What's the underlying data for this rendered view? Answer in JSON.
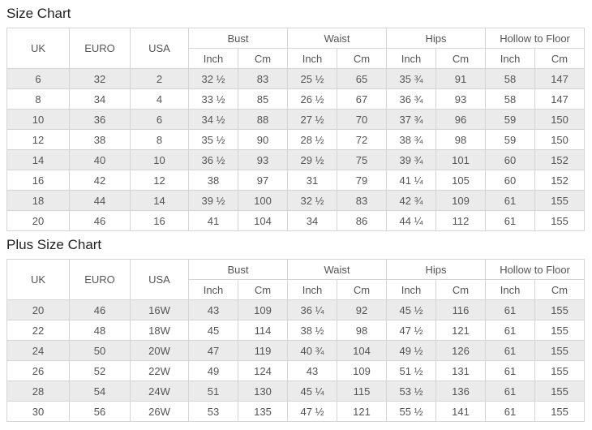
{
  "colors": {
    "background": "#ffffff",
    "border": "#d4d4d4",
    "stripe_row": "#ebebeb",
    "text": "#555555",
    "title_text": "#222222"
  },
  "charts": [
    {
      "title": "Size Chart",
      "columns": {
        "simple": [
          "UK",
          "EURO",
          "USA"
        ],
        "groups": [
          "Bust",
          "Waist",
          "Hips",
          "Hollow to Floor"
        ],
        "units": [
          "Inch",
          "Cm"
        ]
      },
      "rows": [
        [
          "6",
          "32",
          "2",
          "32 ½",
          "83",
          "25 ½",
          "65",
          "35 ¾",
          "91",
          "58",
          "147"
        ],
        [
          "8",
          "34",
          "4",
          "33 ½",
          "85",
          "26 ½",
          "67",
          "36 ¾",
          "93",
          "58",
          "147"
        ],
        [
          "10",
          "36",
          "6",
          "34 ½",
          "88",
          "27 ½",
          "70",
          "37 ¾",
          "96",
          "59",
          "150"
        ],
        [
          "12",
          "38",
          "8",
          "35 ½",
          "90",
          "28 ½",
          "72",
          "38 ¾",
          "98",
          "59",
          "150"
        ],
        [
          "14",
          "40",
          "10",
          "36 ½",
          "93",
          "29 ½",
          "75",
          "39 ¾",
          "101",
          "60",
          "152"
        ],
        [
          "16",
          "42",
          "12",
          "38",
          "97",
          "31",
          "79",
          "41 ¼",
          "105",
          "60",
          "152"
        ],
        [
          "18",
          "44",
          "14",
          "39 ½",
          "100",
          "32 ½",
          "83",
          "42 ¾",
          "109",
          "61",
          "155"
        ],
        [
          "20",
          "46",
          "16",
          "41",
          "104",
          "34",
          "86",
          "44 ¼",
          "112",
          "61",
          "155"
        ]
      ]
    },
    {
      "title": "Plus Size Chart",
      "columns": {
        "simple": [
          "UK",
          "EURO",
          "USA"
        ],
        "groups": [
          "Bust",
          "Waist",
          "Hips",
          "Hollow to Floor"
        ],
        "units": [
          "Inch",
          "Cm"
        ]
      },
      "rows": [
        [
          "20",
          "46",
          "16W",
          "43",
          "109",
          "36 ¼",
          "92",
          "45 ½",
          "116",
          "61",
          "155"
        ],
        [
          "22",
          "48",
          "18W",
          "45",
          "114",
          "38 ½",
          "98",
          "47 ½",
          "121",
          "61",
          "155"
        ],
        [
          "24",
          "50",
          "20W",
          "47",
          "119",
          "40 ¾",
          "104",
          "49 ½",
          "126",
          "61",
          "155"
        ],
        [
          "26",
          "52",
          "22W",
          "49",
          "124",
          "43",
          "109",
          "51 ½",
          "131",
          "61",
          "155"
        ],
        [
          "28",
          "54",
          "24W",
          "51",
          "130",
          "45 ¼",
          "115",
          "53 ½",
          "136",
          "61",
          "155"
        ],
        [
          "30",
          "56",
          "26W",
          "53",
          "135",
          "47 ½",
          "121",
          "55 ½",
          "141",
          "61",
          "155"
        ]
      ]
    }
  ]
}
